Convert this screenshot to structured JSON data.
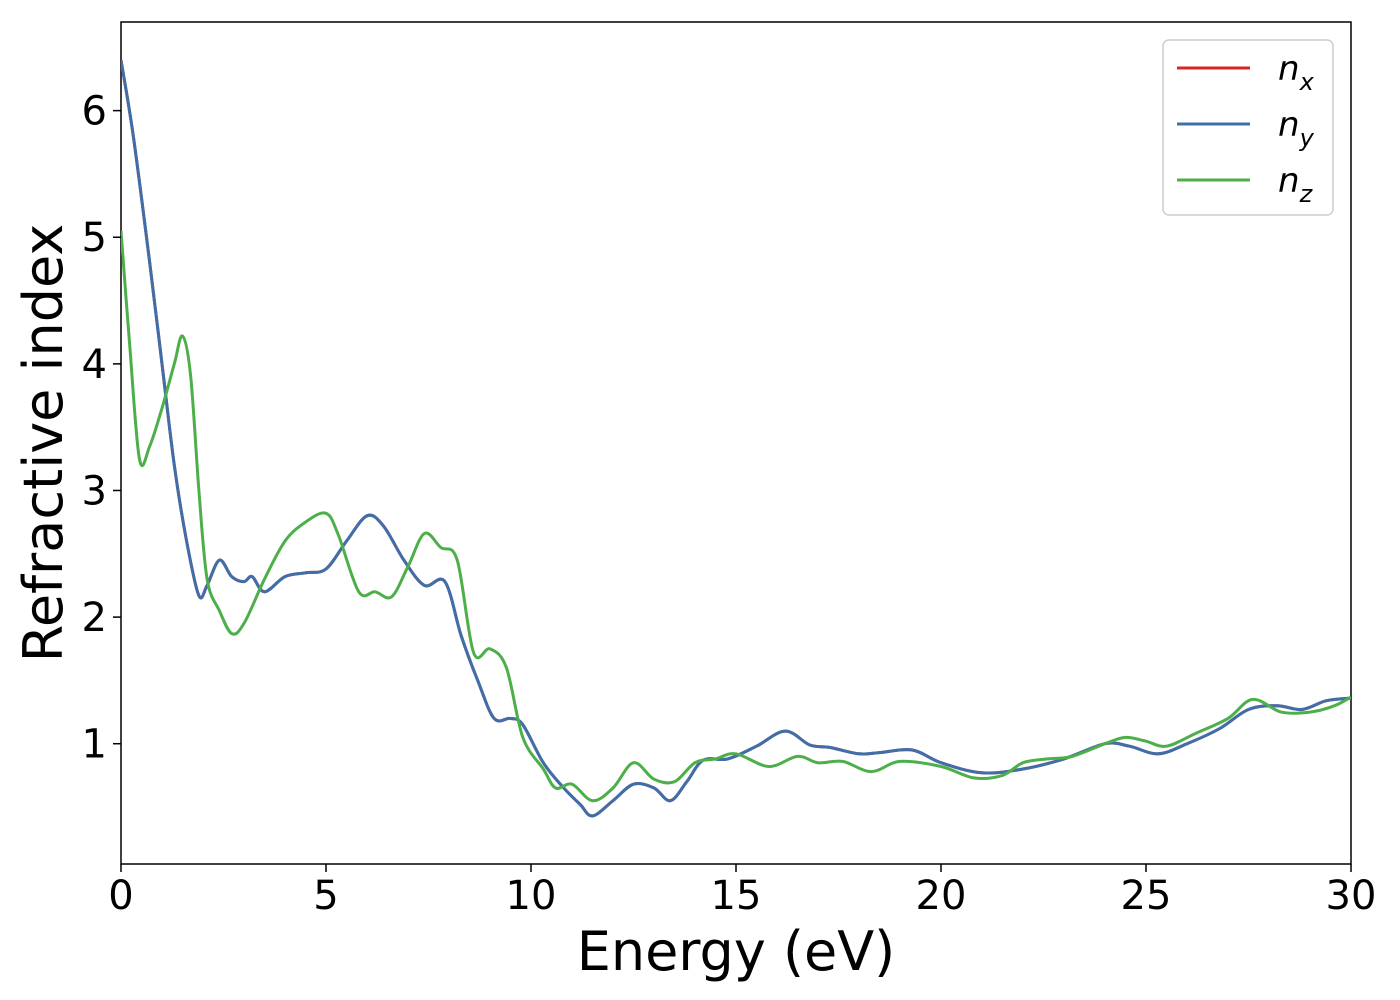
{
  "chart_data": {
    "type": "line",
    "xlabel": "Energy (eV)",
    "ylabel": "Refractive index",
    "xlim": [
      0,
      30
    ],
    "ylim": [
      0.05,
      6.7
    ],
    "xticks": [
      "0",
      "5",
      "10",
      "15",
      "20",
      "25",
      "30"
    ],
    "yticks": [
      "1",
      "2",
      "3",
      "4",
      "5",
      "6"
    ],
    "grid": false,
    "legend_position": "top-right",
    "series": [
      {
        "name": "n_x",
        "label_base": "n",
        "label_sub": "x",
        "color": "#d62728",
        "points": [
          [
            0,
            6.4
          ],
          [
            0.3,
            5.8
          ],
          [
            0.7,
            4.8
          ],
          [
            1.0,
            4.0
          ],
          [
            1.3,
            3.2
          ],
          [
            1.6,
            2.6
          ],
          [
            1.9,
            2.17
          ],
          [
            2.1,
            2.25
          ],
          [
            2.4,
            2.45
          ],
          [
            2.7,
            2.32
          ],
          [
            3.0,
            2.28
          ],
          [
            3.2,
            2.32
          ],
          [
            3.5,
            2.2
          ],
          [
            4.0,
            2.32
          ],
          [
            4.5,
            2.35
          ],
          [
            5.0,
            2.38
          ],
          [
            5.5,
            2.6
          ],
          [
            6.0,
            2.8
          ],
          [
            6.4,
            2.72
          ],
          [
            6.9,
            2.45
          ],
          [
            7.4,
            2.25
          ],
          [
            7.9,
            2.28
          ],
          [
            8.3,
            1.85
          ],
          [
            8.7,
            1.5
          ],
          [
            9.1,
            1.2
          ],
          [
            9.5,
            1.2
          ],
          [
            9.8,
            1.15
          ],
          [
            10.3,
            0.85
          ],
          [
            10.8,
            0.65
          ],
          [
            11.2,
            0.52
          ],
          [
            11.5,
            0.43
          ],
          [
            12.0,
            0.55
          ],
          [
            12.5,
            0.68
          ],
          [
            13.0,
            0.65
          ],
          [
            13.4,
            0.55
          ],
          [
            13.8,
            0.7
          ],
          [
            14.2,
            0.87
          ],
          [
            14.8,
            0.88
          ],
          [
            15.5,
            0.98
          ],
          [
            16.2,
            1.1
          ],
          [
            16.8,
            0.99
          ],
          [
            17.3,
            0.97
          ],
          [
            18.0,
            0.92
          ],
          [
            18.5,
            0.93
          ],
          [
            19.3,
            0.95
          ],
          [
            20.0,
            0.85
          ],
          [
            21.0,
            0.77
          ],
          [
            22.0,
            0.8
          ],
          [
            23.0,
            0.88
          ],
          [
            24.0,
            1.0
          ],
          [
            24.6,
            0.98
          ],
          [
            25.3,
            0.92
          ],
          [
            26.0,
            1.0
          ],
          [
            26.8,
            1.12
          ],
          [
            27.5,
            1.27
          ],
          [
            28.2,
            1.3
          ],
          [
            28.8,
            1.27
          ],
          [
            29.4,
            1.34
          ],
          [
            30.0,
            1.36
          ]
        ]
      },
      {
        "name": "n_y",
        "label_base": "n",
        "label_sub": "y",
        "color": "#3f6faa",
        "points": [
          [
            0,
            6.4
          ],
          [
            0.3,
            5.8
          ],
          [
            0.7,
            4.8
          ],
          [
            1.0,
            4.0
          ],
          [
            1.3,
            3.2
          ],
          [
            1.6,
            2.6
          ],
          [
            1.9,
            2.17
          ],
          [
            2.1,
            2.25
          ],
          [
            2.4,
            2.45
          ],
          [
            2.7,
            2.32
          ],
          [
            3.0,
            2.28
          ],
          [
            3.2,
            2.32
          ],
          [
            3.5,
            2.2
          ],
          [
            4.0,
            2.32
          ],
          [
            4.5,
            2.35
          ],
          [
            5.0,
            2.38
          ],
          [
            5.5,
            2.6
          ],
          [
            6.0,
            2.8
          ],
          [
            6.4,
            2.72
          ],
          [
            6.9,
            2.45
          ],
          [
            7.4,
            2.25
          ],
          [
            7.9,
            2.28
          ],
          [
            8.3,
            1.85
          ],
          [
            8.7,
            1.5
          ],
          [
            9.1,
            1.2
          ],
          [
            9.5,
            1.2
          ],
          [
            9.8,
            1.15
          ],
          [
            10.3,
            0.85
          ],
          [
            10.8,
            0.65
          ],
          [
            11.2,
            0.52
          ],
          [
            11.5,
            0.43
          ],
          [
            12.0,
            0.55
          ],
          [
            12.5,
            0.68
          ],
          [
            13.0,
            0.65
          ],
          [
            13.4,
            0.55
          ],
          [
            13.8,
            0.7
          ],
          [
            14.2,
            0.87
          ],
          [
            14.8,
            0.88
          ],
          [
            15.5,
            0.98
          ],
          [
            16.2,
            1.1
          ],
          [
            16.8,
            0.99
          ],
          [
            17.3,
            0.97
          ],
          [
            18.0,
            0.92
          ],
          [
            18.5,
            0.93
          ],
          [
            19.3,
            0.95
          ],
          [
            20.0,
            0.85
          ],
          [
            21.0,
            0.77
          ],
          [
            22.0,
            0.8
          ],
          [
            23.0,
            0.88
          ],
          [
            24.0,
            1.0
          ],
          [
            24.6,
            0.98
          ],
          [
            25.3,
            0.92
          ],
          [
            26.0,
            1.0
          ],
          [
            26.8,
            1.12
          ],
          [
            27.5,
            1.27
          ],
          [
            28.2,
            1.3
          ],
          [
            28.8,
            1.27
          ],
          [
            29.4,
            1.34
          ],
          [
            30.0,
            1.36
          ]
        ]
      },
      {
        "name": "n_z",
        "label_base": "n",
        "label_sub": "z",
        "color": "#4daf4a",
        "points": [
          [
            0,
            5.05
          ],
          [
            0.2,
            4.2
          ],
          [
            0.45,
            3.25
          ],
          [
            0.7,
            3.35
          ],
          [
            1.0,
            3.65
          ],
          [
            1.3,
            4.0
          ],
          [
            1.5,
            4.22
          ],
          [
            1.7,
            3.9
          ],
          [
            1.9,
            3.0
          ],
          [
            2.1,
            2.3
          ],
          [
            2.4,
            2.05
          ],
          [
            2.7,
            1.87
          ],
          [
            3.0,
            1.95
          ],
          [
            3.5,
            2.3
          ],
          [
            4.0,
            2.6
          ],
          [
            4.5,
            2.75
          ],
          [
            5.0,
            2.82
          ],
          [
            5.3,
            2.65
          ],
          [
            5.8,
            2.2
          ],
          [
            6.2,
            2.2
          ],
          [
            6.6,
            2.16
          ],
          [
            7.0,
            2.4
          ],
          [
            7.4,
            2.66
          ],
          [
            7.8,
            2.55
          ],
          [
            8.2,
            2.45
          ],
          [
            8.6,
            1.72
          ],
          [
            9.0,
            1.75
          ],
          [
            9.4,
            1.6
          ],
          [
            9.8,
            1.05
          ],
          [
            10.3,
            0.8
          ],
          [
            10.6,
            0.65
          ],
          [
            11.0,
            0.68
          ],
          [
            11.5,
            0.55
          ],
          [
            12.0,
            0.65
          ],
          [
            12.5,
            0.85
          ],
          [
            13.0,
            0.72
          ],
          [
            13.5,
            0.7
          ],
          [
            14.0,
            0.85
          ],
          [
            14.5,
            0.88
          ],
          [
            15.0,
            0.92
          ],
          [
            15.8,
            0.82
          ],
          [
            16.5,
            0.9
          ],
          [
            17.0,
            0.85
          ],
          [
            17.6,
            0.86
          ],
          [
            18.3,
            0.78
          ],
          [
            19.0,
            0.86
          ],
          [
            20.0,
            0.82
          ],
          [
            20.8,
            0.73
          ],
          [
            21.5,
            0.75
          ],
          [
            22.0,
            0.85
          ],
          [
            22.6,
            0.88
          ],
          [
            23.2,
            0.9
          ],
          [
            24.0,
            1.0
          ],
          [
            24.5,
            1.05
          ],
          [
            25.0,
            1.02
          ],
          [
            25.5,
            0.98
          ],
          [
            26.2,
            1.08
          ],
          [
            27.0,
            1.2
          ],
          [
            27.6,
            1.35
          ],
          [
            28.3,
            1.25
          ],
          [
            29.0,
            1.25
          ],
          [
            29.6,
            1.3
          ],
          [
            30.0,
            1.37
          ]
        ]
      }
    ]
  }
}
